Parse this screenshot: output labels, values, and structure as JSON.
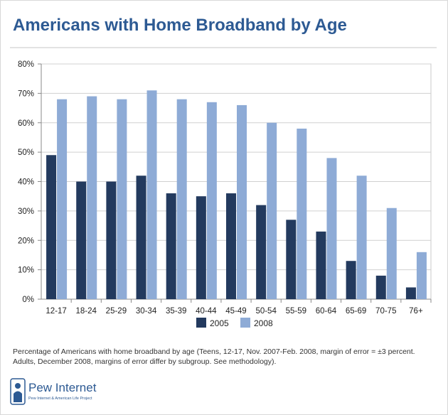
{
  "title": "Americans with Home Broadband by Age",
  "note": "Percentage of Americans with home broadband by age (Teens, 12-17, Nov. 2007-Feb. 2008, margin of error = ±3 percent. Adults, December 2008, margins of error differ by subgroup. See methodology).",
  "logo": {
    "name": "Pew Internet",
    "tagline": "Pew Internet & American Life Project"
  },
  "colors": {
    "series_2005": "#233a5e",
    "series_2008": "#8eabd6",
    "title": "#2d5a93"
  },
  "chart_data": {
    "type": "bar",
    "categories": [
      "12-17",
      "18-24",
      "25-29",
      "30-34",
      "35-39",
      "40-44",
      "45-49",
      "50-54",
      "55-59",
      "60-64",
      "65-69",
      "70-75",
      "76+"
    ],
    "series": [
      {
        "name": "2005",
        "values": [
          49,
          40,
          40,
          42,
          36,
          35,
          36,
          32,
          27,
          23,
          13,
          8,
          4
        ]
      },
      {
        "name": "2008",
        "values": [
          68,
          69,
          68,
          71,
          68,
          67,
          66,
          60,
          58,
          48,
          42,
          31,
          16
        ]
      }
    ],
    "y_ticks": [
      "0%",
      "10%",
      "20%",
      "30%",
      "40%",
      "50%",
      "60%",
      "70%",
      "80%"
    ],
    "ylim": [
      0,
      80
    ],
    "grid": true,
    "legend": "bottom-center"
  }
}
